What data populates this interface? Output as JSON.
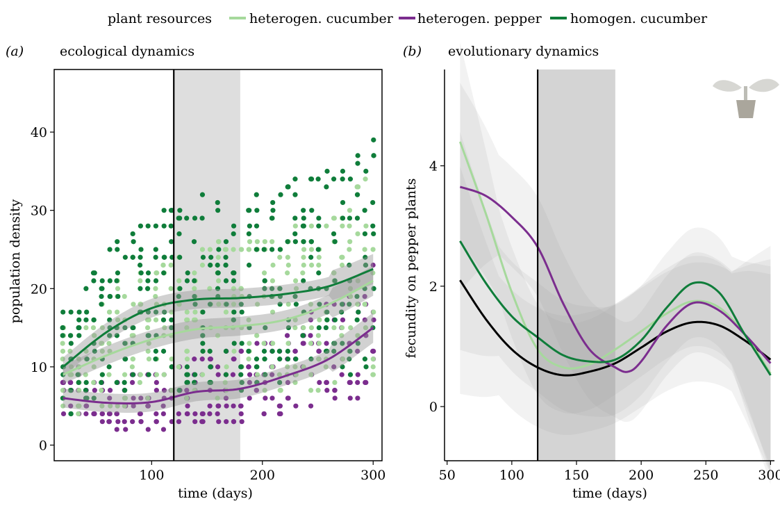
{
  "legend": {
    "title": "plant resources",
    "items": [
      {
        "label": "heterogen. cucumber",
        "color": "#a6d99c"
      },
      {
        "label": "heterogen. pepper",
        "color": "#7b2d8e"
      },
      {
        "label": "homogen. cucumber",
        "color": "#0f7d3a"
      }
    ]
  },
  "chart_data": [
    {
      "panel_letter": "(a)",
      "title": "ecological dynamics",
      "type": "scatter",
      "xlabel": "time (days)",
      "ylabel": "population density",
      "xlim": [
        12,
        308
      ],
      "ylim": [
        -2,
        48
      ],
      "xticks": [
        100,
        200,
        300
      ],
      "yticks": [
        0,
        10,
        20,
        30,
        40
      ],
      "vline": 120,
      "shaded_region": [
        120,
        180
      ],
      "point_days": [
        20,
        27,
        34,
        41,
        48,
        55,
        62,
        69,
        76,
        83,
        90,
        97,
        104,
        111,
        118,
        125,
        132,
        139,
        146,
        153,
        160,
        167,
        174,
        181,
        188,
        195,
        202,
        209,
        216,
        223,
        230,
        237,
        244,
        251,
        258,
        265,
        272,
        279,
        286,
        293,
        300
      ],
      "series": [
        {
          "name": "heterogen. cucumber",
          "color": "#a6d99c",
          "smooth_x": [
            20,
            60,
            100,
            140,
            180,
            220,
            260,
            300
          ],
          "smooth_y": [
            9,
            11.5,
            13.5,
            14.8,
            15.2,
            16,
            18,
            21
          ],
          "ci": 1.2
        },
        {
          "name": "heterogen. pepper",
          "color": "#7b2d8e",
          "smooth_x": [
            20,
            60,
            100,
            140,
            180,
            220,
            260,
            300
          ],
          "smooth_y": [
            6,
            5.4,
            5.5,
            6.8,
            7.2,
            8.8,
            11,
            15
          ],
          "ci": 1.2
        },
        {
          "name": "homogen. cucumber",
          "color": "#0f7d3a",
          "smooth_x": [
            20,
            60,
            100,
            140,
            180,
            220,
            260,
            300
          ],
          "smooth_y": [
            10,
            14.5,
            17.5,
            18.6,
            18.8,
            19.3,
            20.3,
            22.5
          ],
          "ci": 1.2
        }
      ]
    },
    {
      "panel_letter": "(b)",
      "title": "evolutionary dynamics",
      "type": "line",
      "xlabel": "time (days)",
      "ylabel": "fecundity on pepper plants",
      "xlim": [
        48,
        303
      ],
      "ylim": [
        -0.9,
        5.6
      ],
      "xticks": [
        50,
        100,
        150,
        200,
        250,
        300
      ],
      "yticks": [
        0,
        2,
        4
      ],
      "vline": 120,
      "shaded_region": [
        120,
        180
      ],
      "series": [
        {
          "name": "heterogen. cucumber",
          "color": "#a6d99c",
          "x": [
            60,
            80,
            100,
            120,
            140,
            160,
            180,
            200,
            220,
            240,
            260,
            280,
            300
          ],
          "y": [
            4.4,
            3.2,
            1.9,
            0.95,
            0.65,
            0.7,
            0.95,
            1.25,
            1.55,
            1.75,
            1.65,
            1.2,
            0.55
          ]
        },
        {
          "name": "heterogen. pepper",
          "color": "#7b2d8e",
          "x": [
            60,
            80,
            100,
            120,
            140,
            160,
            180,
            190,
            200,
            220,
            240,
            260,
            280,
            300
          ],
          "y": [
            3.65,
            3.5,
            3.15,
            2.65,
            1.7,
            0.95,
            0.65,
            0.58,
            0.75,
            1.35,
            1.72,
            1.6,
            1.2,
            0.72
          ]
        },
        {
          "name": "homogen. cucumber",
          "color": "#0f7d3a",
          "x": [
            60,
            80,
            100,
            120,
            140,
            160,
            180,
            200,
            220,
            240,
            260,
            280,
            300
          ],
          "y": [
            2.75,
            2.05,
            1.5,
            1.15,
            0.85,
            0.75,
            0.78,
            1.1,
            1.65,
            2.05,
            1.9,
            1.2,
            0.52
          ]
        },
        {
          "name": "",
          "color": "#000000",
          "x": [
            60,
            80,
            100,
            120,
            140,
            160,
            180,
            200,
            220,
            240,
            260,
            280,
            300
          ],
          "y": [
            2.1,
            1.45,
            0.95,
            0.65,
            0.52,
            0.58,
            0.72,
            0.98,
            1.25,
            1.4,
            1.35,
            1.1,
            0.78
          ]
        }
      ]
    }
  ]
}
